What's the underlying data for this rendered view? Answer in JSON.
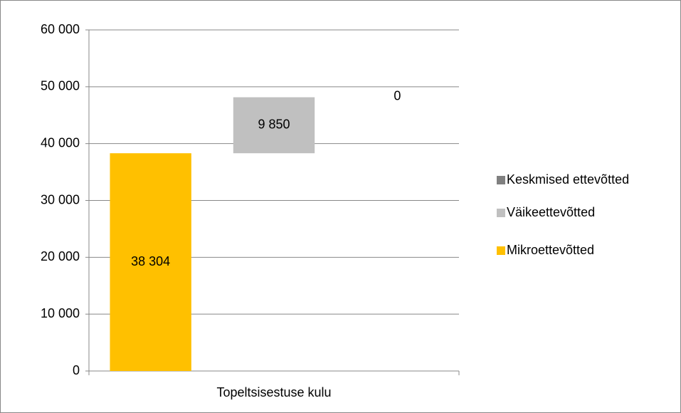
{
  "chart_data": {
    "type": "bar",
    "stacked": true,
    "categories": [
      "Topeltsisestuse kulu"
    ],
    "series": [
      {
        "name": "Mikroettevõtted",
        "color": "#ffc000",
        "values": [
          38304
        ],
        "value_labels": [
          "38 304"
        ]
      },
      {
        "name": "Väikeettevõtted",
        "color": "#c0c0c0",
        "values": [
          9850
        ],
        "value_labels": [
          "9 850"
        ]
      },
      {
        "name": "Keskmised ettevõtted",
        "color": "#808080",
        "values": [
          0
        ]
      }
    ],
    "ylim": [
      0,
      60000
    ],
    "yticks": [
      0,
      {
        "value": 10000,
        "label": "10 000"
      },
      {
        "value": 20000,
        "label": "20 000"
      },
      {
        "value": 30000,
        "label": "30 000"
      },
      {
        "value": 40000,
        "label": "40 000"
      },
      {
        "value": 50000,
        "label": "50 000"
      },
      {
        "value": 60000,
        "label": "60 000"
      }
    ],
    "grid": true,
    "legend": "right"
  }
}
